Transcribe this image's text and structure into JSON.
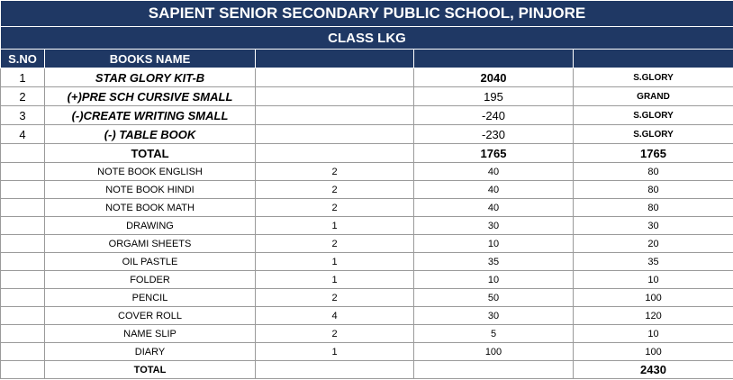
{
  "title": "SAPIENT SENIOR SECONDARY PUBLIC SCHOOL, PINJORE",
  "class_name": "CLASS LKG",
  "columns": {
    "sno": "S.NO",
    "books": "BOOKS NAME"
  },
  "kit_rows": [
    {
      "sno": "1",
      "name": "STAR GLORY KIT-B",
      "amount": "2040",
      "publisher": "S.GLORY"
    },
    {
      "sno": "2",
      "name": "(+)PRE SCH CURSIVE SMALL",
      "amount": "195",
      "publisher": "GRAND"
    },
    {
      "sno": "3",
      "name": "(-)CREATE WRITING SMALL",
      "amount": "-240",
      "publisher": "S.GLORY"
    },
    {
      "sno": "4",
      "name": "(-) TABLE BOOK",
      "amount": "-230",
      "publisher": "S.GLORY"
    }
  ],
  "books_total": {
    "label": "TOTAL",
    "amount": "1765",
    "total": "1765"
  },
  "stationery": [
    {
      "name": "NOTE BOOK ENGLISH",
      "qty": "2",
      "rate": "40",
      "amount": "80"
    },
    {
      "name": "NOTE BOOK HINDI",
      "qty": "2",
      "rate": "40",
      "amount": "80"
    },
    {
      "name": "NOTE BOOK MATH",
      "qty": "2",
      "rate": "40",
      "amount": "80"
    },
    {
      "name": "DRAWING",
      "qty": "1",
      "rate": "30",
      "amount": "30"
    },
    {
      "name": "ORGAMI SHEETS",
      "qty": "2",
      "rate": "10",
      "amount": "20"
    },
    {
      "name": "OIL PASTLE",
      "qty": "1",
      "rate": "35",
      "amount": "35"
    },
    {
      "name": "FOLDER",
      "qty": "1",
      "rate": "10",
      "amount": "10"
    },
    {
      "name": "PENCIL",
      "qty": "2",
      "rate": "50",
      "amount": "100"
    },
    {
      "name": "COVER ROLL",
      "qty": "4",
      "rate": "30",
      "amount": "120"
    },
    {
      "name": "NAME SLIP",
      "qty": "2",
      "rate": "5",
      "amount": "10"
    },
    {
      "name": "DIARY",
      "qty": "1",
      "rate": "100",
      "amount": "100"
    }
  ],
  "grand_total": {
    "label": "TOTAL",
    "amount": "2430"
  },
  "colors": {
    "header_bg": "#1f3864",
    "header_text": "#ffffff",
    "grid": "#9a9a9a"
  }
}
